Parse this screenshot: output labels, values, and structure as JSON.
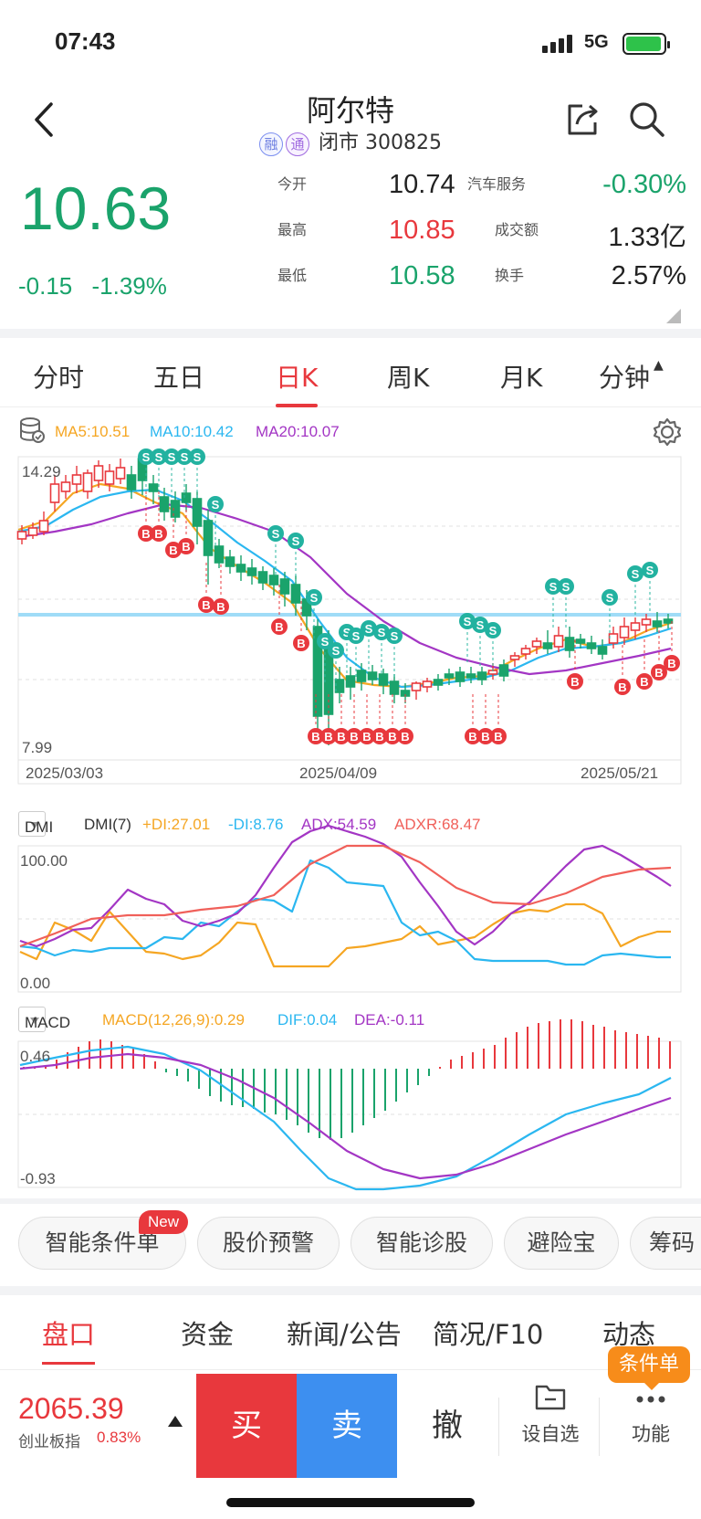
{
  "status": {
    "time": "07:43",
    "network": "5G"
  },
  "stock": {
    "name": "阿尔特",
    "tag_rong": "融",
    "tag_tong": "通",
    "market_status": "闭市",
    "code": "300825",
    "price": "10.63",
    "change": "-0.15",
    "change_pct": "-1.39%"
  },
  "quote": {
    "open_label": "今开",
    "open": "10.74",
    "high_label": "最高",
    "high": "10.85",
    "low_label": "最低",
    "low": "10.58",
    "sector_label": "汽车服务",
    "sector_chg": "-0.30%",
    "amount_label": "成交额",
    "amount": "1.33亿",
    "turnover_label": "换手",
    "turnover": "2.57%"
  },
  "periods": [
    "分时",
    "五日",
    "日K",
    "周K",
    "月K",
    "分钟"
  ],
  "active_period": "日K",
  "ma": {
    "ma5": "MA5:10.51",
    "ma10": "MA10:10.42",
    "ma20": "MA20:10.07"
  },
  "colors": {
    "ma5": "#f5a623",
    "ma10": "#2bb7f0",
    "ma20": "#a336c4",
    "up": "#e8383d",
    "down": "#1aa36b",
    "pressure_line": "#9fdcf7"
  },
  "kline": {
    "y_max_label": "14.29",
    "y_min_label": "7.99",
    "dates": [
      "2025/03/03",
      "2025/04/09",
      "2025/05/21"
    ],
    "signal_buy": "B",
    "signal_sell": "S"
  },
  "dmi": {
    "selector": "DMI",
    "name": "DMI(7)",
    "pdi": "+DI:27.01",
    "mdi": "-DI:8.76",
    "adx": "ADX:54.59",
    "adxr": "ADXR:68.47",
    "y_max": "100.00",
    "y_min": "0.00"
  },
  "macd": {
    "selector": "MACD",
    "name": "MACD(12,26,9):0.29",
    "dif": "DIF:0.04",
    "dea": "DEA:-0.11",
    "y_max": "0.46",
    "y_min": "-0.93"
  },
  "tools": {
    "conditional_order": "智能条件单",
    "new_badge": "New",
    "price_alert": "股价预警",
    "diagnosis": "智能诊股",
    "risk_shield": "避险宝",
    "chips": "筹码"
  },
  "tabs": [
    "盘口",
    "资金",
    "新闻/公告",
    "简况/F10",
    "动态"
  ],
  "bottom": {
    "index_value": "2065.39",
    "index_name": "创业板指",
    "index_pct": "0.83%",
    "buy": "买",
    "sell": "卖",
    "cancel": "撤",
    "favorite": "设自选",
    "functions": "功能",
    "cond_badge": "条件单"
  }
}
